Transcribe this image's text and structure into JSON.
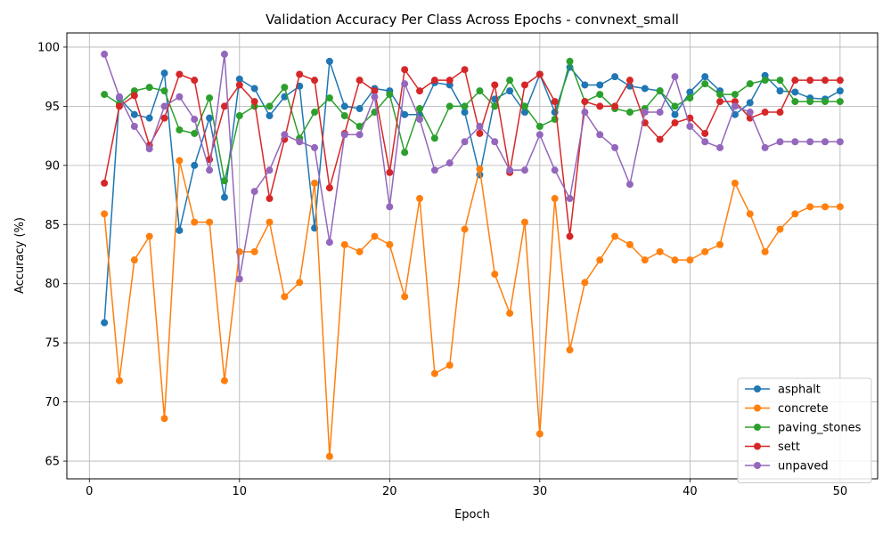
{
  "chart_data": {
    "type": "line",
    "title": "Validation Accuracy Per Class Across Epochs - convnext_small",
    "xlabel": "Epoch",
    "ylabel": "Accuracy (%)",
    "xlim": [
      -1.5,
      52.5
    ],
    "ylim": [
      63.5,
      101.2
    ],
    "xticks": [
      0,
      10,
      20,
      30,
      40,
      50
    ],
    "yticks": [
      65,
      70,
      75,
      80,
      85,
      90,
      95,
      100
    ],
    "grid": true,
    "legend_position": "bottom-right",
    "x": [
      1,
      2,
      3,
      4,
      5,
      6,
      7,
      8,
      9,
      10,
      11,
      12,
      13,
      14,
      15,
      16,
      17,
      18,
      19,
      20,
      21,
      22,
      23,
      24,
      25,
      26,
      27,
      28,
      29,
      30,
      31,
      32,
      33,
      34,
      35,
      36,
      37,
      38,
      39,
      40,
      41,
      42,
      43,
      44,
      45,
      46,
      47,
      48,
      49,
      50
    ],
    "series": [
      {
        "name": "asphalt",
        "color": "#1f77b4",
        "values": [
          76.7,
          95.7,
          94.3,
          94.0,
          97.8,
          84.5,
          90.0,
          94.0,
          87.3,
          97.3,
          96.5,
          94.2,
          95.8,
          96.7,
          84.7,
          98.8,
          95.0,
          94.8,
          96.5,
          96.3,
          94.3,
          94.3,
          97.0,
          96.8,
          94.5,
          89.2,
          95.6,
          96.3,
          94.5,
          97.7,
          94.5,
          98.3,
          96.8,
          96.8,
          97.5,
          96.7,
          96.5,
          96.3,
          94.3,
          96.2,
          97.5,
          96.3,
          94.3,
          95.3,
          97.6,
          96.3,
          96.2,
          95.7,
          95.6,
          96.3
        ]
      },
      {
        "name": "concrete",
        "color": "#ff7f0e",
        "values": [
          85.9,
          71.8,
          82.0,
          84.0,
          68.6,
          90.4,
          85.2,
          85.2,
          71.8,
          82.7,
          82.7,
          85.2,
          78.9,
          80.1,
          88.5,
          65.4,
          83.3,
          82.7,
          84.0,
          83.3,
          78.9,
          87.2,
          72.4,
          73.1,
          84.6,
          89.7,
          80.8,
          77.5,
          85.2,
          67.3,
          87.2,
          74.4,
          80.1,
          82.0,
          84.0,
          83.3,
          82.0,
          82.7,
          82.0,
          82.0,
          82.7,
          83.3,
          88.5,
          85.9,
          82.7,
          84.6,
          85.9,
          86.5,
          86.5,
          86.5
        ]
      },
      {
        "name": "paving_stones",
        "color": "#2ca02c",
        "values": [
          96.0,
          95.2,
          96.3,
          96.6,
          96.3,
          93.0,
          92.7,
          95.7,
          88.7,
          94.2,
          95.0,
          95.0,
          96.6,
          92.3,
          94.5,
          95.7,
          94.2,
          93.3,
          94.5,
          96.0,
          91.1,
          94.8,
          92.3,
          95.0,
          95.0,
          96.3,
          95.0,
          97.2,
          95.0,
          93.3,
          93.9,
          98.8,
          95.4,
          96.0,
          94.8,
          94.5,
          94.8,
          96.3,
          95.0,
          95.7,
          96.9,
          96.0,
          96.0,
          96.9,
          97.2,
          97.2,
          95.4,
          95.4,
          95.4,
          95.4
        ]
      },
      {
        "name": "sett",
        "color": "#d62728",
        "values": [
          88.5,
          95.0,
          95.9,
          91.7,
          94.0,
          97.7,
          97.2,
          90.5,
          95.0,
          96.8,
          95.4,
          87.2,
          92.2,
          97.7,
          97.2,
          88.1,
          92.7,
          97.2,
          96.3,
          89.4,
          98.1,
          96.3,
          97.2,
          97.2,
          98.1,
          92.7,
          96.8,
          89.4,
          96.8,
          97.7,
          95.4,
          84.0,
          95.4,
          95.0,
          95.0,
          97.2,
          93.6,
          92.2,
          93.6,
          94.0,
          92.7,
          95.4,
          95.4,
          94.0,
          94.5,
          94.5,
          97.2,
          97.2,
          97.2,
          97.2
        ]
      },
      {
        "name": "unpaved",
        "color": "#9467bd",
        "values": [
          99.4,
          95.8,
          93.3,
          91.4,
          95.0,
          95.8,
          93.9,
          89.6,
          99.4,
          80.4,
          87.8,
          89.6,
          92.6,
          92.0,
          91.5,
          83.5,
          92.6,
          92.6,
          95.8,
          86.5,
          96.9,
          93.9,
          89.6,
          90.2,
          92.0,
          93.3,
          92.0,
          89.6,
          89.6,
          92.6,
          89.6,
          87.2,
          94.5,
          92.6,
          91.5,
          88.4,
          94.5,
          94.5,
          97.5,
          93.3,
          92.0,
          91.5,
          95.0,
          94.5,
          91.5,
          92.0,
          92.0,
          92.0,
          92.0,
          92.0
        ]
      }
    ]
  }
}
